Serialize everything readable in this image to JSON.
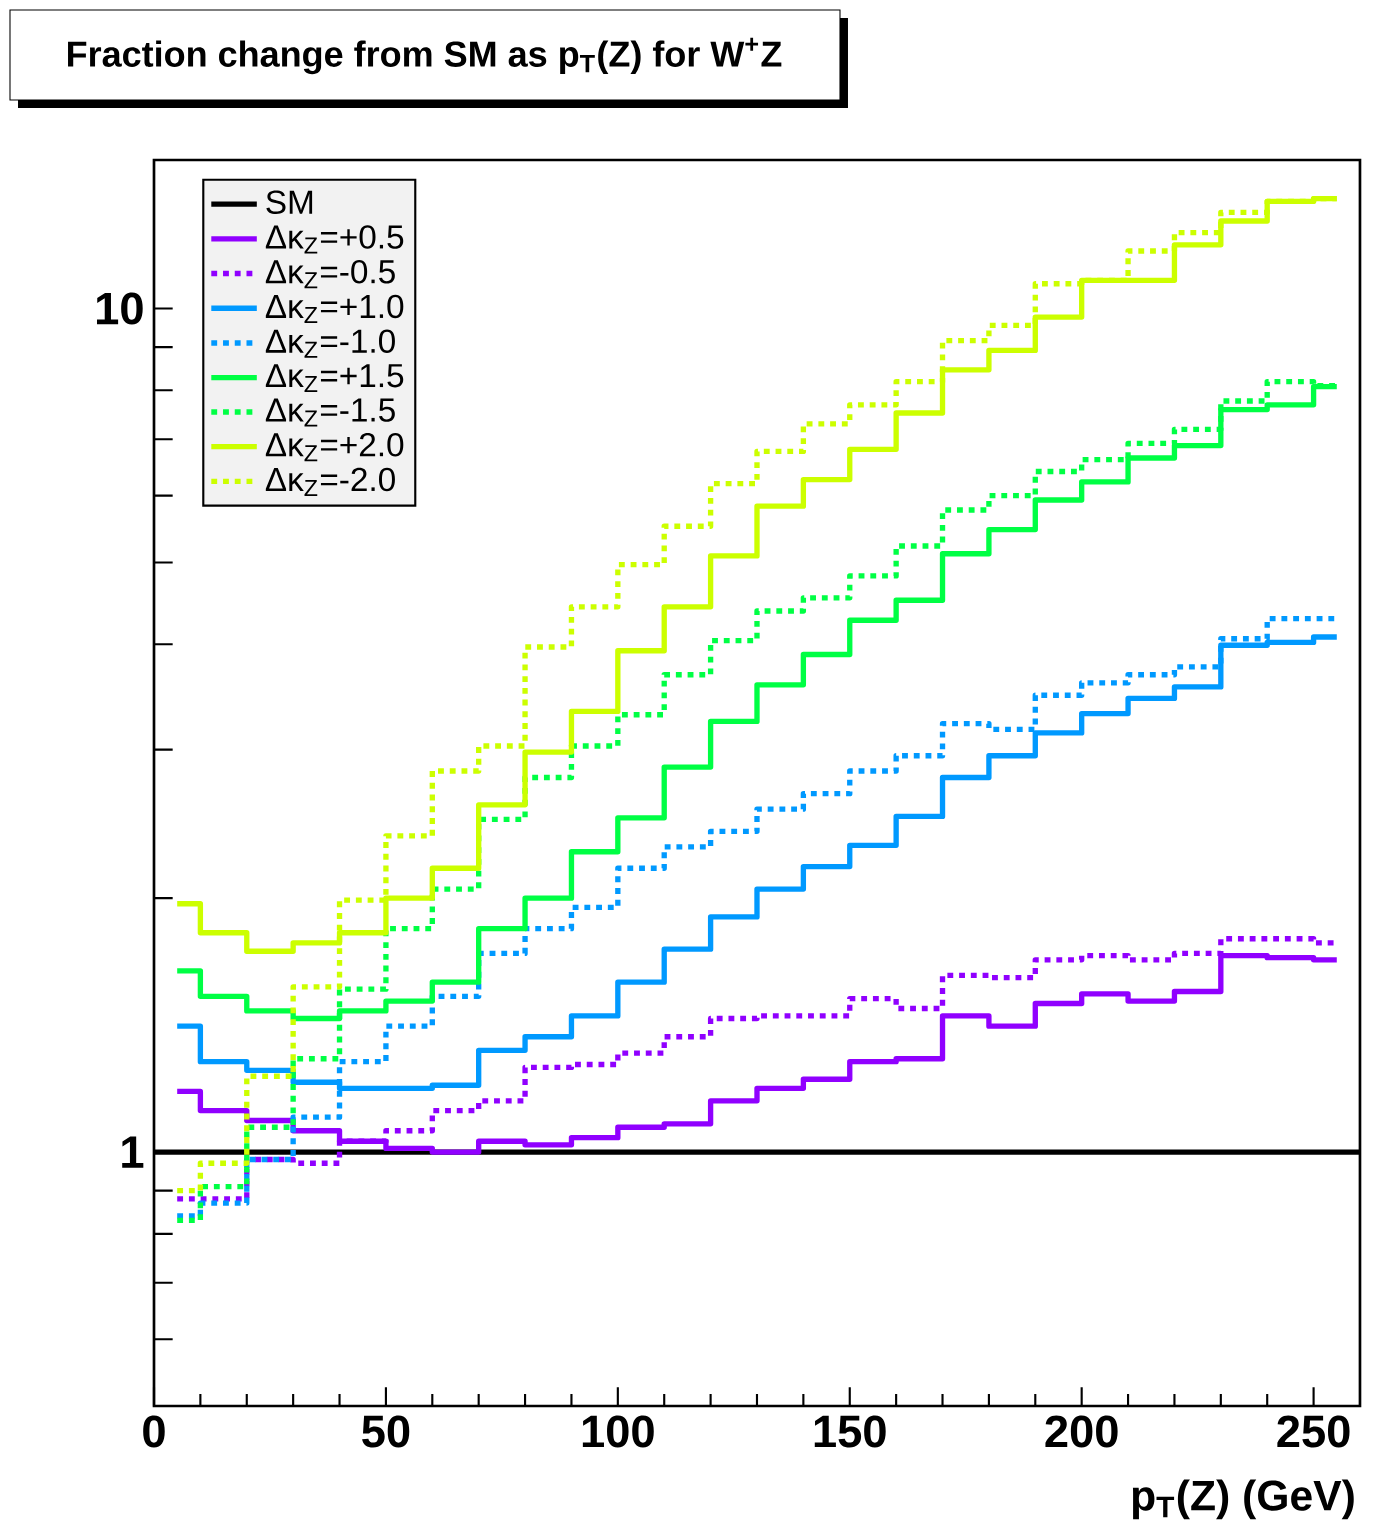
{
  "chart_data": {
    "type": "step",
    "title": "Fraction change from SM as p$_{T}$(Z) for W$^{+}$Z",
    "xlabel": "p$_{T}$(Z) (GeV)",
    "x": [
      5,
      15,
      25,
      35,
      45,
      55,
      65,
      75,
      85,
      95,
      105,
      115,
      125,
      135,
      145,
      155,
      165,
      175,
      185,
      195,
      205,
      215,
      225,
      235,
      245,
      255
    ],
    "log": true,
    "legend": "top left",
    "xlim": [
      0,
      260
    ],
    "ylim": [
      0.5,
      15
    ],
    "xticks": [
      0,
      50,
      100,
      150,
      200,
      250
    ],
    "yticks": [
      {
        "value": 0.6,
        "label": null
      },
      {
        "value": 0.7,
        "label": null
      },
      {
        "value": 0.8,
        "label": null
      },
      {
        "value": 0.9,
        "label": null
      },
      1,
      {
        "value": 2,
        "label": null
      },
      {
        "value": 3,
        "label": null
      },
      {
        "value": 4,
        "label": null
      },
      {
        "value": 5,
        "label": null
      },
      {
        "value": 6,
        "label": null
      },
      {
        "value": 7,
        "label": null
      },
      {
        "value": 8,
        "label": null
      },
      {
        "value": 9,
        "label": null
      },
      10
    ],
    "series": [
      {
        "name": "SM",
        "type": "line",
        "x": [
          0,
          260
        ],
        "color": "#000000",
        "line_style": "solid",
        "values": [
          1,
          1
        ]
      },
      {
        "name": "Δκ$_{Z}$=+0.5",
        "color": "#9000ff",
        "line_style": "solid",
        "values": [
          1.18,
          1.12,
          1.09,
          1.06,
          1.03,
          1.01,
          1.0,
          1.03,
          1.02,
          1.04,
          1.07,
          1.08,
          1.15,
          1.19,
          1.22,
          1.28,
          1.29,
          1.45,
          1.41,
          1.5,
          1.54,
          1.51,
          1.55,
          1.71,
          1.7,
          1.69
        ]
      },
      {
        "name": "Δκ$_{Z}$=-0.5",
        "color": "#9000ff",
        "line_style": "dotted",
        "values": [
          0.88,
          0.88,
          0.98,
          0.97,
          1.03,
          1.06,
          1.12,
          1.15,
          1.26,
          1.27,
          1.31,
          1.37,
          1.44,
          1.45,
          1.45,
          1.52,
          1.48,
          1.62,
          1.61,
          1.69,
          1.71,
          1.69,
          1.72,
          1.79,
          1.79,
          1.77
        ]
      },
      {
        "name": "Δκ$_{Z}$=+1.0",
        "color": "#0099ff",
        "line_style": "solid",
        "values": [
          1.41,
          1.28,
          1.25,
          1.21,
          1.19,
          1.19,
          1.2,
          1.32,
          1.37,
          1.45,
          1.59,
          1.74,
          1.9,
          2.05,
          2.18,
          2.31,
          2.5,
          2.78,
          2.95,
          3.14,
          3.31,
          3.45,
          3.56,
          3.99,
          4.02,
          4.08
        ]
      },
      {
        "name": "Δκ$_{Z}$=-1.0",
        "color": "#0099ff",
        "line_style": "dotted",
        "values": [
          0.84,
          0.87,
          0.98,
          1.1,
          1.28,
          1.41,
          1.53,
          1.72,
          1.84,
          1.95,
          2.17,
          2.3,
          2.4,
          2.55,
          2.66,
          2.83,
          2.95,
          3.22,
          3.17,
          3.48,
          3.6,
          3.68,
          3.76,
          4.06,
          4.29,
          4.29
        ]
      },
      {
        "name": "Δκ$_{Z}$=+1.5",
        "color": "#00ff44",
        "line_style": "solid",
        "values": [
          1.64,
          1.53,
          1.47,
          1.44,
          1.47,
          1.51,
          1.59,
          1.84,
          2.0,
          2.27,
          2.49,
          2.86,
          3.24,
          3.58,
          3.89,
          4.27,
          4.51,
          5.12,
          5.47,
          5.93,
          6.23,
          6.65,
          6.88,
          7.59,
          7.69,
          8.08
        ]
      },
      {
        "name": "Δκ$_{Z}$=-1.5",
        "color": "#00ff44",
        "line_style": "dotted",
        "values": [
          0.83,
          0.91,
          1.07,
          1.29,
          1.56,
          1.84,
          2.05,
          2.48,
          2.78,
          3.03,
          3.3,
          3.68,
          4.04,
          4.38,
          4.54,
          4.82,
          5.23,
          5.77,
          6.0,
          6.41,
          6.62,
          6.92,
          7.19,
          7.77,
          8.19,
          8.1
        ]
      },
      {
        "name": "Δκ$_{Z}$=+2.0",
        "color": "#ccff00",
        "line_style": "solid",
        "values": [
          1.97,
          1.82,
          1.73,
          1.77,
          1.82,
          2.0,
          2.17,
          2.58,
          2.98,
          3.33,
          3.93,
          4.43,
          5.09,
          5.83,
          6.27,
          6.81,
          7.52,
          8.46,
          8.92,
          9.77,
          10.8,
          10.8,
          11.9,
          12.7,
          13.4,
          13.5
        ]
      },
      {
        "name": "Δκ$_{Z}$=-2.0",
        "color": "#ccff00",
        "line_style": "dotted",
        "values": [
          0.9,
          0.97,
          1.23,
          1.57,
          1.99,
          2.37,
          2.83,
          3.03,
          3.97,
          4.43,
          4.97,
          5.52,
          6.2,
          6.77,
          7.3,
          7.69,
          8.19,
          9.16,
          9.55,
          10.7,
          10.8,
          11.7,
          12.3,
          13.0,
          13.4,
          13.5
        ]
      }
    ]
  }
}
